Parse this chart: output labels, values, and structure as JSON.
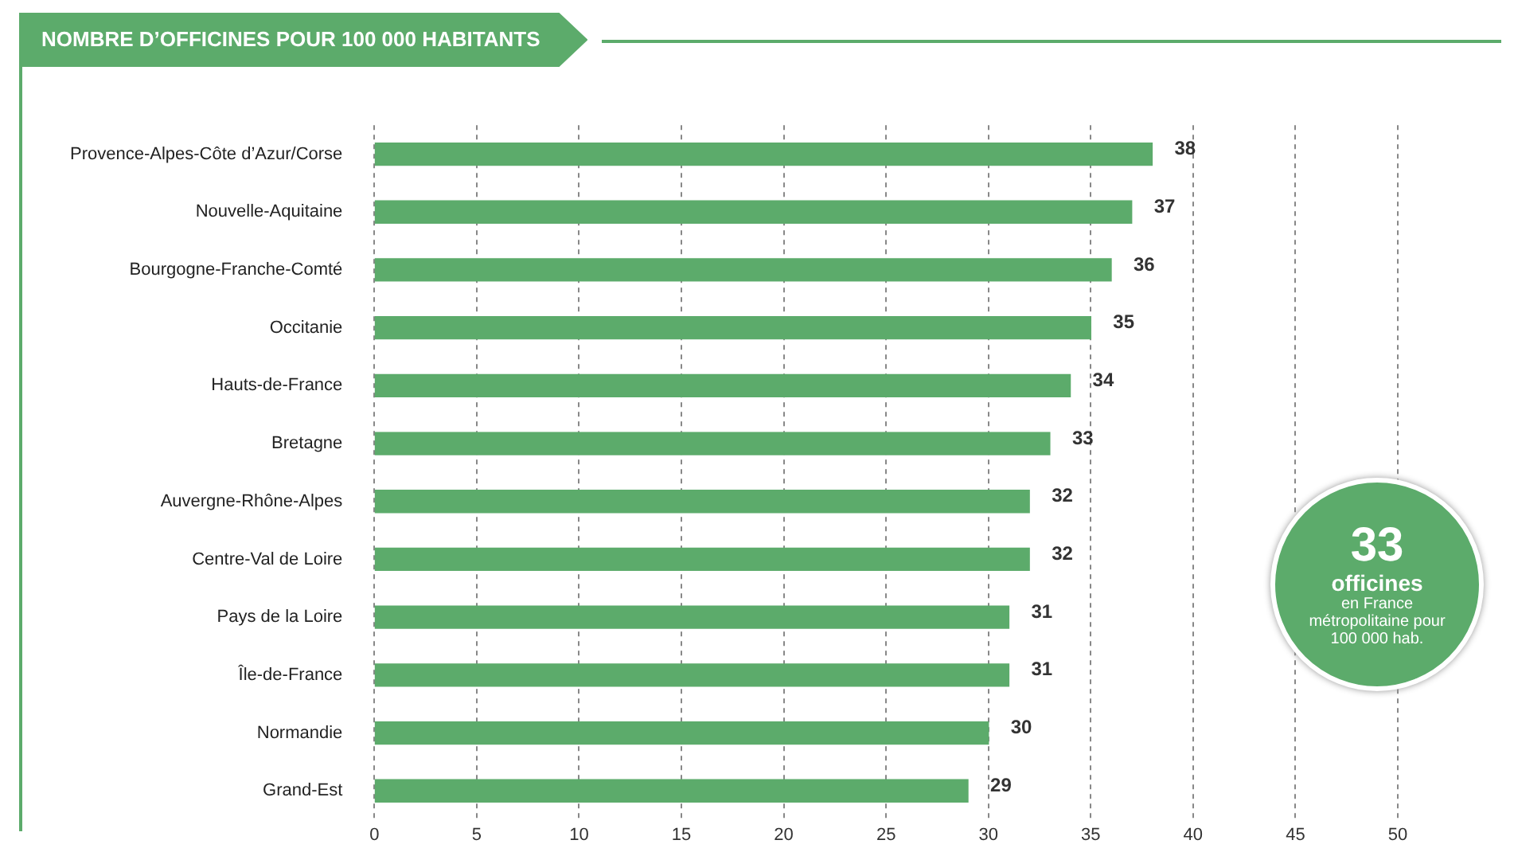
{
  "chart_data": {
    "type": "bar",
    "orientation": "horizontal",
    "title": "NOMBRE D’OFFICINES POUR 100 000 HABITANTS",
    "categories": [
      "Provence-Alpes-Côte d’Azur/Corse",
      "Nouvelle-Aquitaine",
      "Bourgogne-Franche-Comté",
      "Occitanie",
      "Hauts-de-France",
      "Bretagne",
      "Auvergne-Rhône-Alpes",
      "Centre-Val de Loire",
      "Pays de la Loire",
      "Île-de-France",
      "Normandie",
      "Grand-Est"
    ],
    "values": [
      38,
      37,
      36,
      35,
      34,
      33,
      32,
      32,
      31,
      31,
      30,
      29
    ],
    "color": "#5cab6b",
    "xlim": [
      0,
      50
    ],
    "xticks": [
      0,
      5,
      10,
      15,
      20,
      25,
      30,
      35,
      40,
      45,
      50
    ],
    "grid": "x",
    "data_labels": true,
    "legend": false,
    "annotations": [
      "33",
      "officines",
      "en France métropolitaine pour 100 000 hab."
    ]
  }
}
